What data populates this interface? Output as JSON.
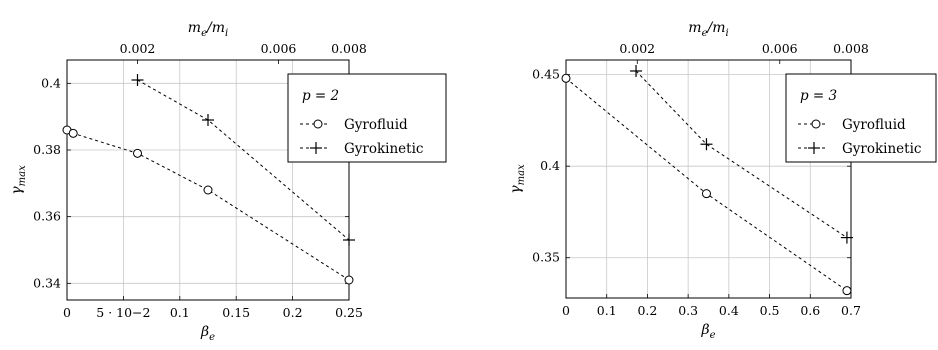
{
  "chart_data": [
    {
      "type": "scatter",
      "xlabel": "βe",
      "ylabel": "γmax",
      "top_axis_label": "me/mi",
      "xlim": [
        0,
        0.25
      ],
      "ylim": [
        0.335,
        0.407
      ],
      "top_xlim": [
        0,
        0.008
      ],
      "xticks": [
        0,
        0.05,
        0.1,
        0.15,
        0.2,
        0.25
      ],
      "xtick_labels": [
        "0",
        "5 · 10−2",
        "0.1",
        "0.15",
        "0.2",
        "0.25"
      ],
      "yticks": [
        0.34,
        0.36,
        0.38,
        0.4
      ],
      "ytick_labels": [
        "0.34",
        "0.36",
        "0.38",
        "0.4"
      ],
      "top_xticks": [
        0.002,
        0.006,
        0.008
      ],
      "top_xtick_labels": [
        "0.002",
        "0.006",
        "0.008"
      ],
      "grid": true,
      "legend_title": "p = 2",
      "legend_placement": "top-right",
      "series": [
        {
          "name": "Gyrofluid",
          "marker": "circle",
          "x": [
            0,
            0.0055,
            0.0625,
            0.125,
            0.25
          ],
          "y": [
            0.386,
            0.385,
            0.379,
            0.368,
            0.341
          ]
        },
        {
          "name": "Gyrokinetic",
          "marker": "plus",
          "x": [
            0.0625,
            0.125,
            0.25
          ],
          "y": [
            0.401,
            0.389,
            0.353
          ]
        }
      ]
    },
    {
      "type": "scatter",
      "xlabel": "βe",
      "ylabel": "γmax",
      "top_axis_label": "me/mi",
      "xlim": [
        0,
        0.7
      ],
      "ylim": [
        0.328,
        0.458
      ],
      "top_xlim": [
        0,
        0.008
      ],
      "xticks": [
        0,
        0.1,
        0.2,
        0.3,
        0.4,
        0.5,
        0.6,
        0.7
      ],
      "xtick_labels": [
        "0",
        "0.1",
        "0.2",
        "0.3",
        "0.4",
        "0.5",
        "0.6",
        "0.7"
      ],
      "yticks": [
        0.35,
        0.4,
        0.45
      ],
      "ytick_labels": [
        "0.35",
        "0.4",
        "0.45"
      ],
      "top_xticks": [
        0.002,
        0.006,
        0.008
      ],
      "top_xtick_labels": [
        "0.002",
        "0.006",
        "0.008"
      ],
      "grid": true,
      "legend_title": "p = 3",
      "legend_placement": "top-right",
      "series": [
        {
          "name": "Gyrofluid",
          "marker": "circle",
          "x": [
            0,
            0.345,
            0.69
          ],
          "y": [
            0.448,
            0.385,
            0.332
          ]
        },
        {
          "name": "Gyrokinetic",
          "marker": "plus",
          "x": [
            0.172,
            0.345,
            0.69
          ],
          "y": [
            0.452,
            0.412,
            0.361
          ]
        }
      ]
    }
  ]
}
